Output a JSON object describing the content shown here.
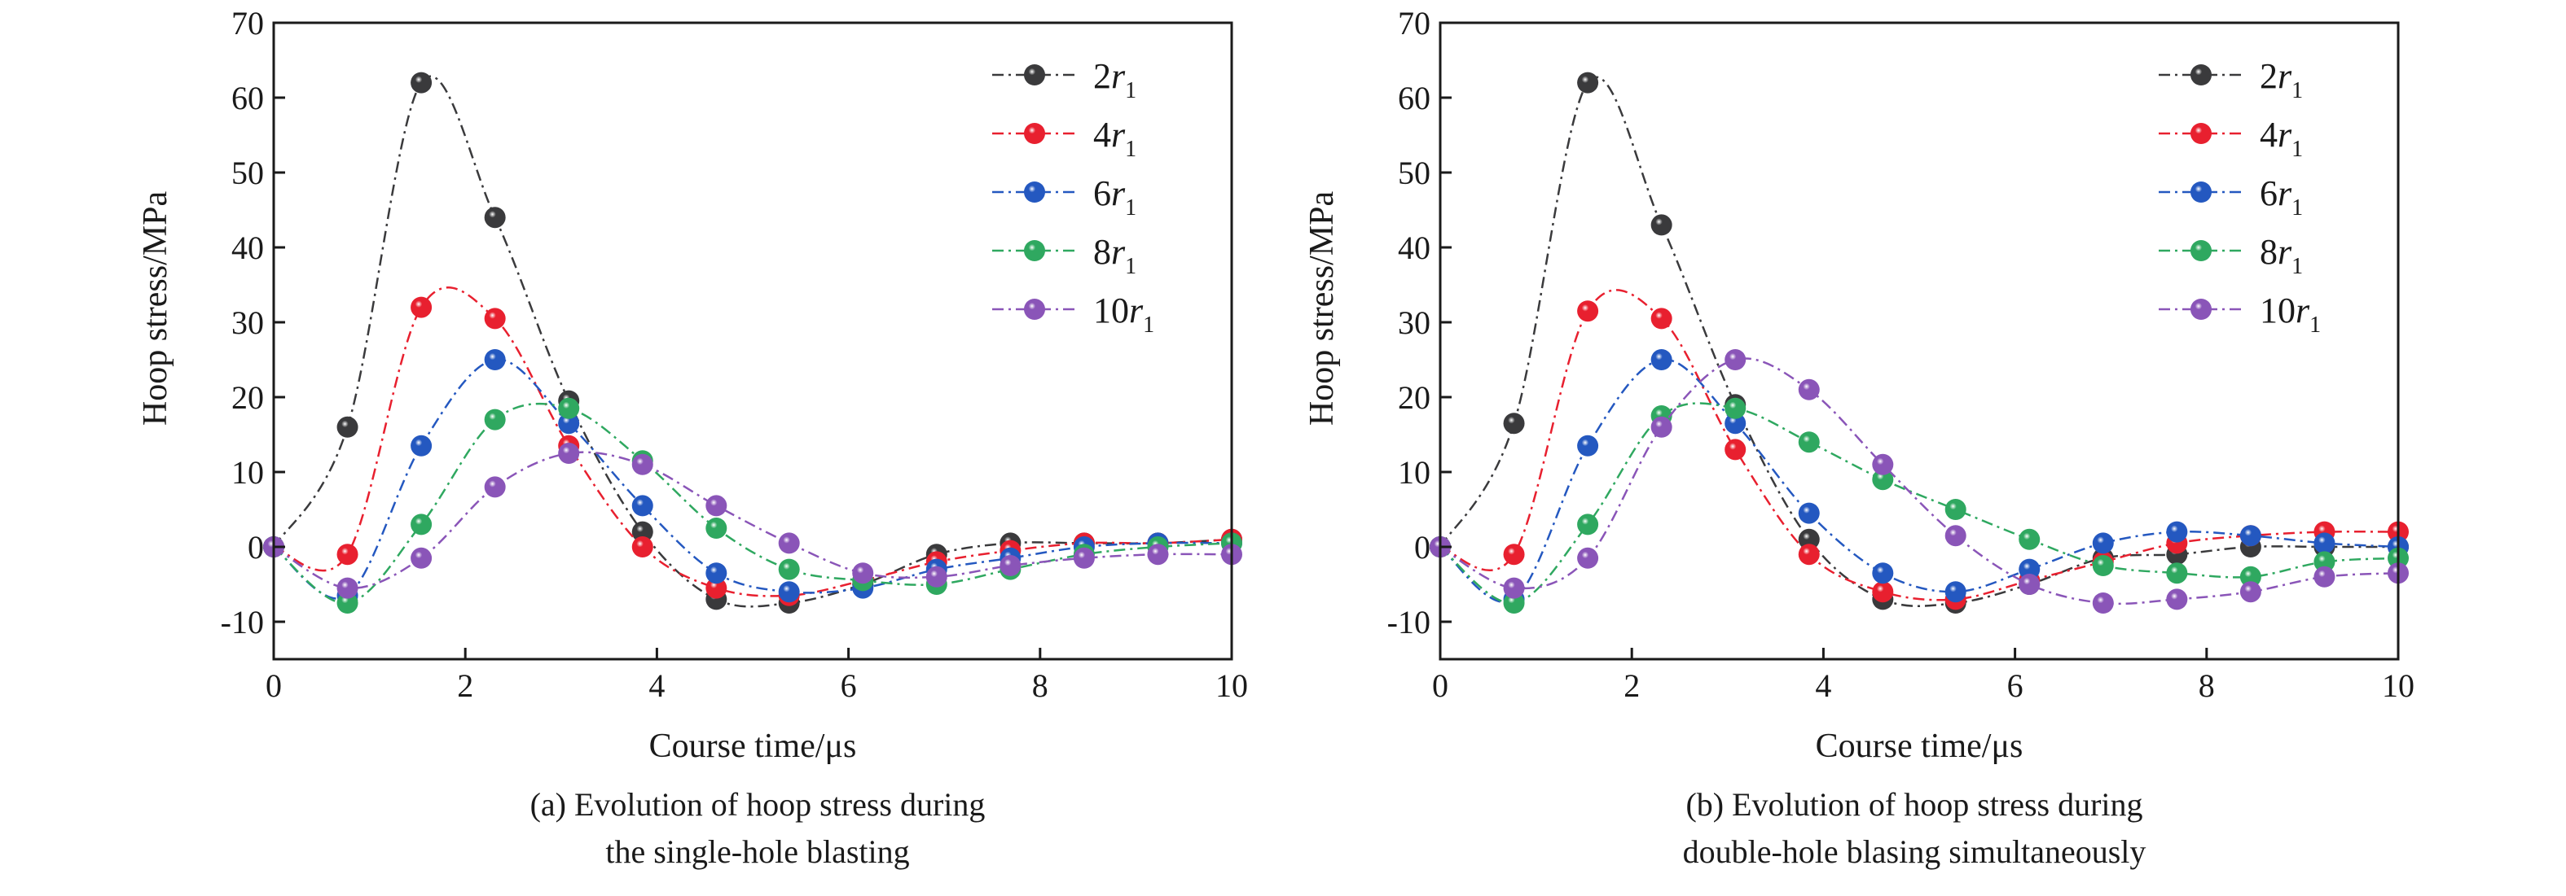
{
  "chart_data": [
    {
      "type": "line",
      "title": "(a) Evolution of hoop stress during the single-hole blasting",
      "caption_lines": [
        "(a) Evolution of hoop stress during",
        "the single-hole blasting"
      ],
      "xlabel": "Course time/μs",
      "ylabel": "Hoop stress/MPa",
      "xlim": [
        0,
        10
      ],
      "ylim": [
        -15,
        70
      ],
      "xticks": [
        0,
        2,
        4,
        6,
        8,
        10
      ],
      "yticks": [
        -10,
        0,
        10,
        20,
        30,
        40,
        50,
        60,
        70
      ],
      "grid": false,
      "legend_position": "top-right",
      "x": [
        0,
        0.77,
        1.54,
        2.31,
        3.08,
        3.85,
        4.62,
        5.38,
        6.15,
        6.92,
        7.69,
        8.46,
        9.23,
        10
      ],
      "series": [
        {
          "name": "2r",
          "subscript": "1",
          "color": "#3a3a3c",
          "values": [
            0,
            16,
            62,
            44,
            19.5,
            2,
            -7,
            -7.5,
            -5,
            -1,
            0.5,
            0.5,
            0.5,
            1
          ]
        },
        {
          "name": "4r",
          "subscript": "1",
          "color": "#e8202f",
          "values": [
            0,
            -1,
            32,
            30.5,
            13.5,
            0,
            -5.5,
            -6.5,
            -4.5,
            -2,
            -0.5,
            0.5,
            0.5,
            1
          ]
        },
        {
          "name": "6r",
          "subscript": "1",
          "color": "#2458c0",
          "values": [
            0,
            -6.5,
            13.5,
            25,
            16.5,
            5.5,
            -3.5,
            -6,
            -5.5,
            -3,
            -1.5,
            0,
            0.5,
            0.5
          ]
        },
        {
          "name": "8r",
          "subscript": "1",
          "color": "#2fa860",
          "values": [
            0,
            -7.5,
            3,
            17,
            18.5,
            11.5,
            2.5,
            -3,
            -4.5,
            -5,
            -3,
            -1,
            0,
            0.5
          ]
        },
        {
          "name": "10r",
          "subscript": "1",
          "color": "#8a55b8",
          "values": [
            0,
            -5.5,
            -1.5,
            8,
            12.5,
            11,
            5.5,
            0.5,
            -3.5,
            -4,
            -2.5,
            -1.5,
            -1,
            -1
          ]
        }
      ]
    },
    {
      "type": "line",
      "title": "(b) Evolution of hoop stress during double-hole blasing simultaneously",
      "caption_lines": [
        "(b) Evolution of hoop stress during",
        "double-hole blasing simultaneously"
      ],
      "xlabel": "Course time/μs",
      "ylabel": "Hoop stress/MPa",
      "xlim": [
        0,
        10
      ],
      "ylim": [
        -15,
        70
      ],
      "xticks": [
        0,
        2,
        4,
        6,
        8,
        10
      ],
      "yticks": [
        -10,
        0,
        10,
        20,
        30,
        40,
        50,
        60,
        70
      ],
      "grid": false,
      "legend_position": "top-right",
      "x": [
        0,
        0.77,
        1.54,
        2.31,
        3.08,
        3.85,
        4.62,
        5.38,
        6.15,
        6.92,
        7.69,
        8.46,
        9.23,
        10
      ],
      "series": [
        {
          "name": "2r",
          "subscript": "1",
          "color": "#3a3a3c",
          "values": [
            0,
            16.5,
            62,
            43,
            19,
            1,
            -7,
            -7.5,
            -5,
            -1.5,
            -1,
            0,
            0,
            0
          ]
        },
        {
          "name": "4r",
          "subscript": "1",
          "color": "#e8202f",
          "values": [
            0,
            -1,
            31.5,
            30.5,
            13,
            -1,
            -6,
            -7,
            -4.5,
            -2,
            0.5,
            1.5,
            2,
            2
          ]
        },
        {
          "name": "6r",
          "subscript": "1",
          "color": "#2458c0",
          "values": [
            0,
            -7,
            13.5,
            25,
            16.5,
            4.5,
            -3.5,
            -6,
            -3,
            0.5,
            2,
            1.5,
            0.5,
            0
          ]
        },
        {
          "name": "8r",
          "subscript": "1",
          "color": "#2fa860",
          "values": [
            0,
            -7.5,
            3,
            17.5,
            18.5,
            14,
            9,
            5,
            1,
            -2.5,
            -3.5,
            -4,
            -2,
            -1.5
          ]
        },
        {
          "name": "10r",
          "subscript": "1",
          "color": "#8a55b8",
          "values": [
            0,
            -5.5,
            -1.5,
            16,
            25,
            21,
            11,
            1.5,
            -5,
            -7.5,
            -7,
            -6,
            -4,
            -3.5
          ]
        }
      ]
    }
  ]
}
